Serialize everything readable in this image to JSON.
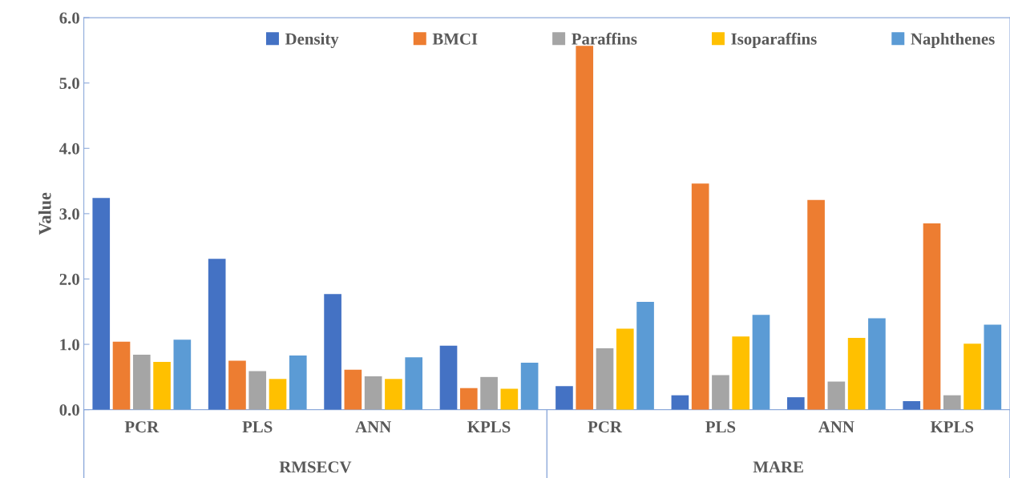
{
  "chart_data": {
    "type": "bar",
    "ylabel": "Value",
    "categories": [
      "PCR",
      "PLS",
      "ANN",
      "KPLS",
      "PCR",
      "PLS",
      "ANN",
      "KPLS"
    ],
    "annotations": [
      "RMSECV",
      "MARE"
    ],
    "series": [
      {
        "name": "Density",
        "color": "#4472c4",
        "values": [
          3.24,
          2.31,
          1.77,
          0.98,
          0.36,
          0.22,
          0.19,
          0.13
        ]
      },
      {
        "name": "BMCI",
        "color": "#ed7d31",
        "values": [
          1.04,
          0.75,
          0.61,
          0.33,
          5.57,
          3.46,
          3.21,
          2.85
        ]
      },
      {
        "name": "Paraffins",
        "color": "#a5a5a5",
        "values": [
          0.84,
          0.59,
          0.51,
          0.5,
          0.94,
          0.53,
          0.43,
          0.22
        ]
      },
      {
        "name": "Isoparaffins",
        "color": "#ffc000",
        "values": [
          0.73,
          0.47,
          0.47,
          0.32,
          1.24,
          1.12,
          1.1,
          1.01
        ]
      },
      {
        "name": "Naphthenes",
        "color": "#5b9bd5",
        "values": [
          1.07,
          0.83,
          0.8,
          0.72,
          1.65,
          1.45,
          1.4,
          1.3
        ]
      }
    ],
    "ylim": [
      0,
      6
    ],
    "yticks": [
      {
        "value": 0,
        "label": "0.0"
      },
      {
        "value": 1,
        "label": "1.0"
      },
      {
        "value": 2,
        "label": "2.0"
      },
      {
        "value": 3,
        "label": "3.0"
      },
      {
        "value": 4,
        "label": "4.0"
      },
      {
        "value": 5,
        "label": "5.0"
      },
      {
        "value": 6,
        "label": "6.0"
      }
    ],
    "grid": false,
    "legend": "top"
  }
}
